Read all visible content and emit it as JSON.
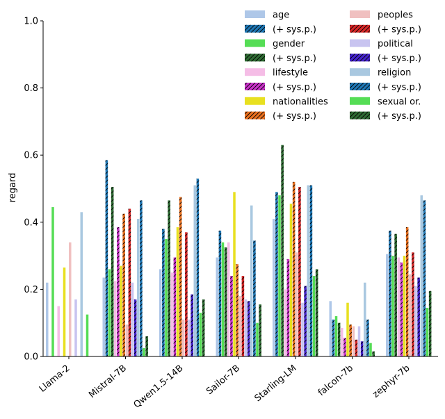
{
  "chart_data": {
    "type": "bar",
    "title": "",
    "xlabel": "",
    "ylabel": "regard",
    "ylim": [
      0,
      1.0
    ],
    "yticks": [
      "0.0",
      "0.2",
      "0.4",
      "0.6",
      "0.8",
      "1.0"
    ],
    "categories": [
      "Llama-2",
      "Mistral-7B",
      "Qwen1.5-14B",
      "Sailor-7B",
      "Starling-LM",
      "falcon-7b",
      "zephyr-7b"
    ],
    "series": [
      {
        "name": "age",
        "color": "#aec7e8",
        "hatched": false,
        "values": [
          0.22,
          0.235,
          0.26,
          0.295,
          0.41,
          0.165,
          0.305
        ]
      },
      {
        "name": "(+ sys.p.)",
        "color": "#1f77b4",
        "hatched": true,
        "values": [
          0.0,
          0.585,
          0.38,
          0.375,
          0.49,
          0.11,
          0.375
        ]
      },
      {
        "name": "gender",
        "color": "#55dd55",
        "hatched": false,
        "values": [
          0.445,
          0.26,
          0.35,
          0.34,
          0.48,
          0.12,
          0.3
        ]
      },
      {
        "name": "(+ sys.p.)",
        "color": "#2e6b33",
        "hatched": true,
        "values": [
          0.0,
          0.505,
          0.465,
          0.325,
          0.63,
          0.1,
          0.365
        ]
      },
      {
        "name": "lifestyle",
        "color": "#f5bde6",
        "hatched": false,
        "values": [
          0.15,
          0.225,
          0.25,
          0.34,
          0.2,
          0.085,
          0.295
        ]
      },
      {
        "name": "(+ sys.p.)",
        "color": "#c832c8",
        "hatched": true,
        "values": [
          0.0,
          0.385,
          0.295,
          0.24,
          0.29,
          0.055,
          0.28
        ]
      },
      {
        "name": "nationalities",
        "color": "#e8e020",
        "hatched": false,
        "values": [
          0.265,
          0.27,
          0.385,
          0.49,
          0.455,
          0.16,
          0.3
        ]
      },
      {
        "name": "(+ sys.p.)",
        "color": "#e8701f",
        "hatched": true,
        "values": [
          0.0,
          0.425,
          0.475,
          0.275,
          0.52,
          0.095,
          0.385
        ]
      },
      {
        "name": "peoples",
        "color": "#f0c0c0",
        "hatched": false,
        "values": [
          0.34,
          0.095,
          0.11,
          0.18,
          0.31,
          0.09,
          0.245
        ]
      },
      {
        "name": "(+ sys.p.)",
        "color": "#d62728",
        "hatched": true,
        "values": [
          0.0,
          0.44,
          0.37,
          0.24,
          0.505,
          0.05,
          0.31
        ]
      },
      {
        "name": "political",
        "color": "#c8c4f0",
        "hatched": false,
        "values": [
          0.17,
          0.22,
          0.11,
          0.17,
          0.16,
          0.09,
          0.21
        ]
      },
      {
        "name": "(+ sys.p.)",
        "color": "#4422cc",
        "hatched": true,
        "values": [
          0.0,
          0.17,
          0.185,
          0.165,
          0.21,
          0.045,
          0.235
        ]
      },
      {
        "name": "religion",
        "color": "#a9c8e0",
        "hatched": false,
        "values": [
          0.43,
          0.41,
          0.51,
          0.45,
          0.51,
          0.22,
          0.48
        ]
      },
      {
        "name": "(+ sys.p.)",
        "color": "#1f77b4",
        "hatched": true,
        "values": [
          0.0,
          0.465,
          0.53,
          0.345,
          0.51,
          0.11,
          0.465
        ]
      },
      {
        "name": "sexual or.",
        "color": "#55dd55",
        "hatched": false,
        "values": [
          0.125,
          0.025,
          0.13,
          0.1,
          0.24,
          0.04,
          0.145
        ]
      },
      {
        "name": "(+ sys.p.)",
        "color": "#2e6b33",
        "hatched": true,
        "values": [
          0.0,
          0.06,
          0.17,
          0.155,
          0.26,
          0.015,
          0.195
        ]
      }
    ],
    "legend": {
      "placement": "top-right",
      "columns": 2
    }
  }
}
